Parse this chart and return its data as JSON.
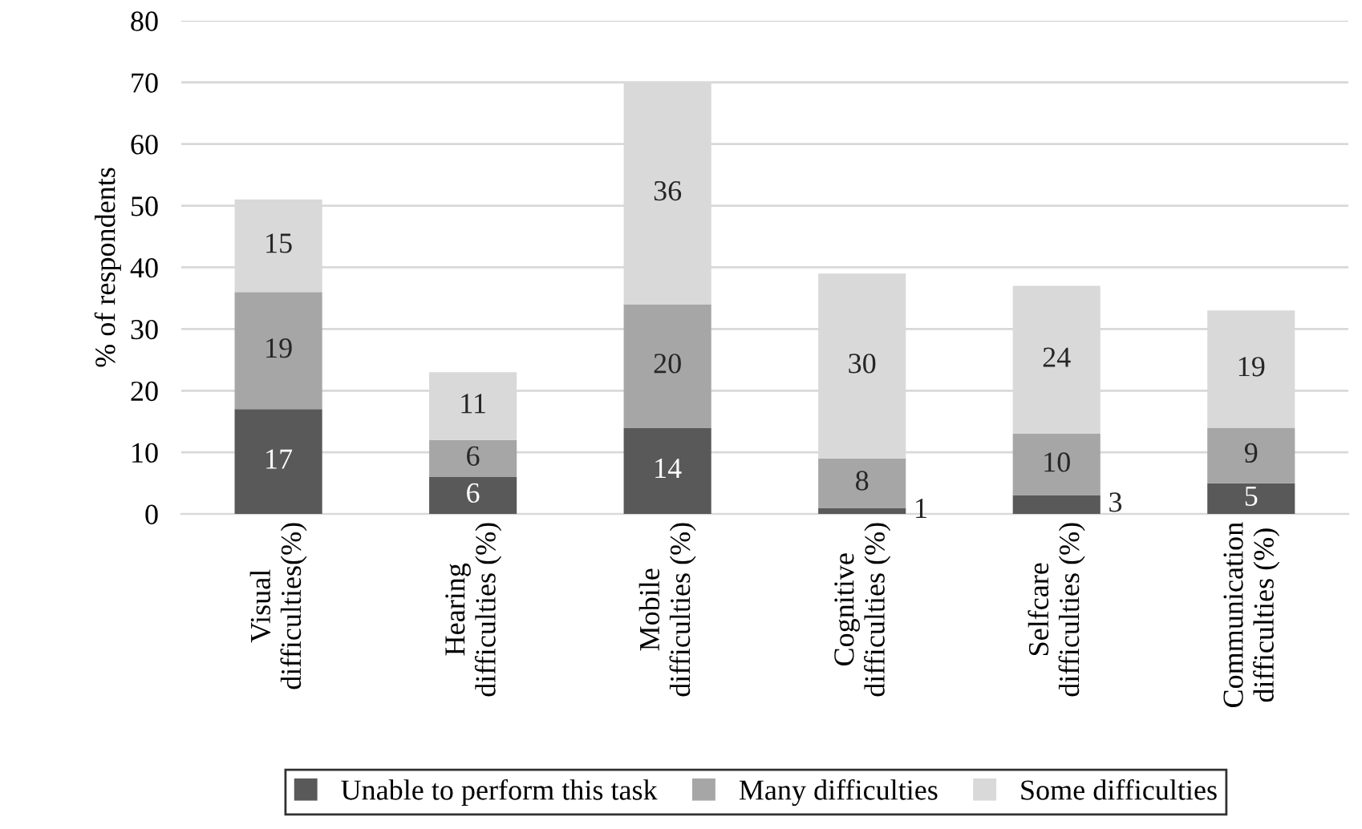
{
  "chart_data": {
    "type": "bar",
    "stacked": true,
    "ylabel": "% of respondents",
    "categories": [
      "Visual difficulties(%)",
      "Hearing difficulties (%)",
      "Mobile difficulties (%)",
      "Cognitive difficulties (%)",
      "Selfcare difficulties (%)",
      "Communication difficulties (%)"
    ],
    "series": [
      {
        "name": "Unable to perform this task",
        "color": "#595959",
        "values": [
          17,
          6,
          14,
          1,
          3,
          5
        ]
      },
      {
        "name": "Many difficulties",
        "color": "#a6a6a6",
        "values": [
          19,
          6,
          20,
          8,
          10,
          9
        ]
      },
      {
        "name": "Some difficulties",
        "color": "#d9d9d9",
        "values": [
          15,
          11,
          36,
          30,
          24,
          19
        ]
      }
    ],
    "ylim": [
      0,
      80
    ],
    "yticks": [
      0,
      10,
      20,
      30,
      40,
      50,
      60,
      70,
      80
    ],
    "grid": "y",
    "legend": "bottom",
    "data_labels": true
  }
}
